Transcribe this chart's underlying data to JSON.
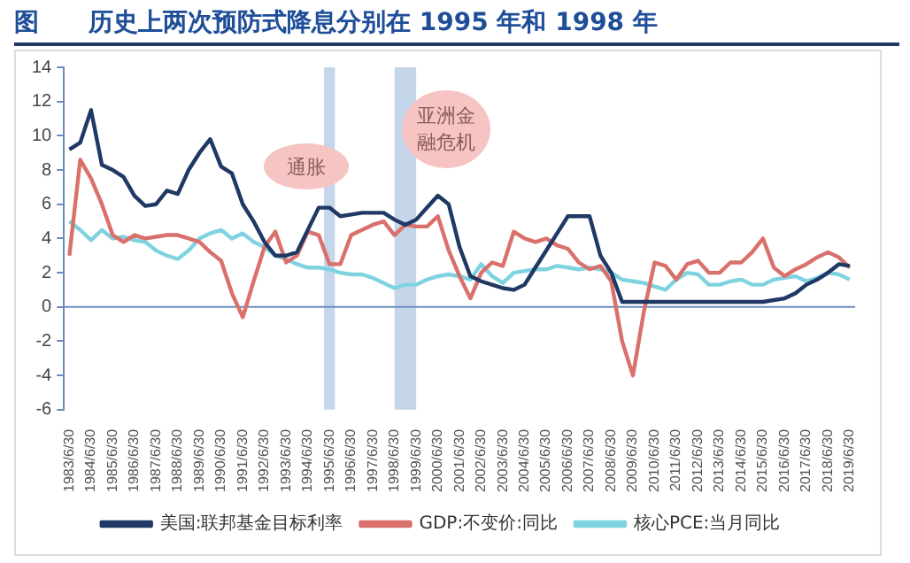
{
  "chart_data": {
    "type": "line",
    "title": "图　　历史上两次预防式降息分别在 1995 年和 1998 年",
    "annotations": [
      "通胀",
      "亚洲金融危机"
    ],
    "ylim": [
      -6,
      14
    ],
    "yticks": [
      -6,
      -4,
      -2,
      0,
      2,
      4,
      6,
      8,
      10,
      12,
      14
    ],
    "categories": [
      "1983/6/30",
      null,
      "1984/6/30",
      null,
      "1985/6/30",
      null,
      "1986/6/30",
      null,
      "1987/6/30",
      null,
      "1988/6/30",
      null,
      "1989/6/30",
      null,
      "1990/6/30",
      null,
      "1991/6/30",
      null,
      "1992/6/30",
      null,
      "1993/6/30",
      null,
      "1994/6/30",
      null,
      "1995/6/30",
      null,
      "1996/6/30",
      null,
      "1997/6/30",
      null,
      "1998/6/30",
      null,
      "1999/6/30",
      null,
      "2000/6/30",
      null,
      "2001/6/30",
      null,
      "2002/6/30",
      null,
      "2003/6/30",
      null,
      "2004/6/30",
      null,
      "2005/6/30",
      null,
      "2006/6/30",
      null,
      "2007/6/30",
      null,
      "2008/6/30",
      null,
      "2009/6/30",
      null,
      "2010/6/30",
      null,
      "2011/6/30",
      null,
      "2012/6/30",
      null,
      "2013/6/30",
      null,
      "2014/6/30",
      null,
      "2015/6/30",
      null,
      "2016/6/30",
      null,
      "2017/6/30",
      null,
      "2018/6/30",
      null,
      "2019/6/30"
    ],
    "bands": [
      {
        "axis": "x",
        "from": "1995/6/30",
        "to": "1995/6/30",
        "color": "#c5d5ea"
      },
      {
        "axis": "x",
        "from": "1998/6/30",
        "to": "1999/6/30",
        "color": "#c5d5ea"
      }
    ],
    "ref_lines": [
      {
        "axis": "y",
        "value": 0,
        "color": "#6b8bbf"
      }
    ],
    "grid": false,
    "legend": "bottom",
    "marker": "none",
    "line_style": "solid",
    "series": [
      {
        "name": "美国:联邦基金目标利率",
        "color": "#1f3864",
        "values": [
          9.2,
          9.6,
          11.5,
          8.3,
          8.0,
          7.6,
          6.5,
          5.9,
          6.0,
          6.8,
          6.6,
          8.0,
          9.0,
          9.8,
          8.2,
          7.8,
          6.0,
          5.0,
          3.8,
          3.0,
          3.0,
          3.2,
          4.5,
          5.8,
          5.8,
          5.3,
          5.4,
          5.5,
          5.5,
          5.5,
          5.1,
          4.8,
          5.1,
          5.8,
          6.5,
          6.0,
          3.5,
          1.8,
          1.5,
          1.3,
          1.1,
          1.0,
          1.3,
          2.3,
          3.3,
          4.3,
          5.3,
          5.3,
          5.3,
          3.0,
          2.0,
          0.3,
          0.3,
          0.3,
          0.3,
          0.3,
          0.3,
          0.3,
          0.3,
          0.3,
          0.3,
          0.3,
          0.3,
          0.3,
          0.3,
          0.4,
          0.5,
          0.8,
          1.3,
          1.6,
          2.0,
          2.5,
          2.4
        ]
      },
      {
        "name": "GDP:不变价:同比",
        "color": "#d9706b",
        "values": [
          3.0,
          8.6,
          7.5,
          6.0,
          4.2,
          3.8,
          4.2,
          4.0,
          4.1,
          4.2,
          4.2,
          4.0,
          3.8,
          3.2,
          2.7,
          0.8,
          -0.6,
          1.5,
          3.5,
          4.4,
          2.6,
          3.0,
          4.4,
          4.2,
          2.5,
          2.5,
          4.2,
          4.5,
          4.8,
          5.0,
          4.2,
          4.8,
          4.7,
          4.7,
          5.3,
          3.3,
          1.8,
          0.5,
          2.0,
          2.6,
          2.4,
          4.4,
          4.0,
          3.8,
          4.0,
          3.6,
          3.4,
          2.6,
          2.2,
          2.4,
          1.5,
          -2.0,
          -4.0,
          -0.3,
          2.6,
          2.4,
          1.6,
          2.5,
          2.7,
          2.0,
          2.0,
          2.6,
          2.6,
          3.2,
          4.0,
          2.3,
          1.8,
          2.2,
          2.5,
          2.9,
          3.2,
          2.9,
          2.3
        ]
      },
      {
        "name": "核心PCE:当月同比",
        "color": "#7fd3e0",
        "values": [
          5.0,
          4.5,
          3.9,
          4.5,
          4.0,
          4.1,
          3.9,
          3.8,
          3.3,
          3.0,
          2.8,
          3.3,
          4.0,
          4.3,
          4.5,
          4.0,
          4.3,
          3.8,
          3.5,
          3.0,
          2.8,
          2.5,
          2.3,
          2.3,
          2.2,
          2.0,
          1.9,
          1.9,
          1.7,
          1.4,
          1.1,
          1.3,
          1.3,
          1.6,
          1.8,
          1.9,
          1.8,
          1.6,
          2.5,
          1.8,
          1.4,
          2.0,
          2.1,
          2.2,
          2.2,
          2.4,
          2.3,
          2.2,
          2.3,
          2.2,
          2.0,
          1.6,
          1.5,
          1.4,
          1.2,
          1.0,
          1.6,
          2.0,
          1.9,
          1.3,
          1.3,
          1.5,
          1.6,
          1.3,
          1.3,
          1.6,
          1.7,
          1.8,
          1.5,
          1.7,
          2.0,
          1.9,
          1.6
        ]
      }
    ]
  }
}
